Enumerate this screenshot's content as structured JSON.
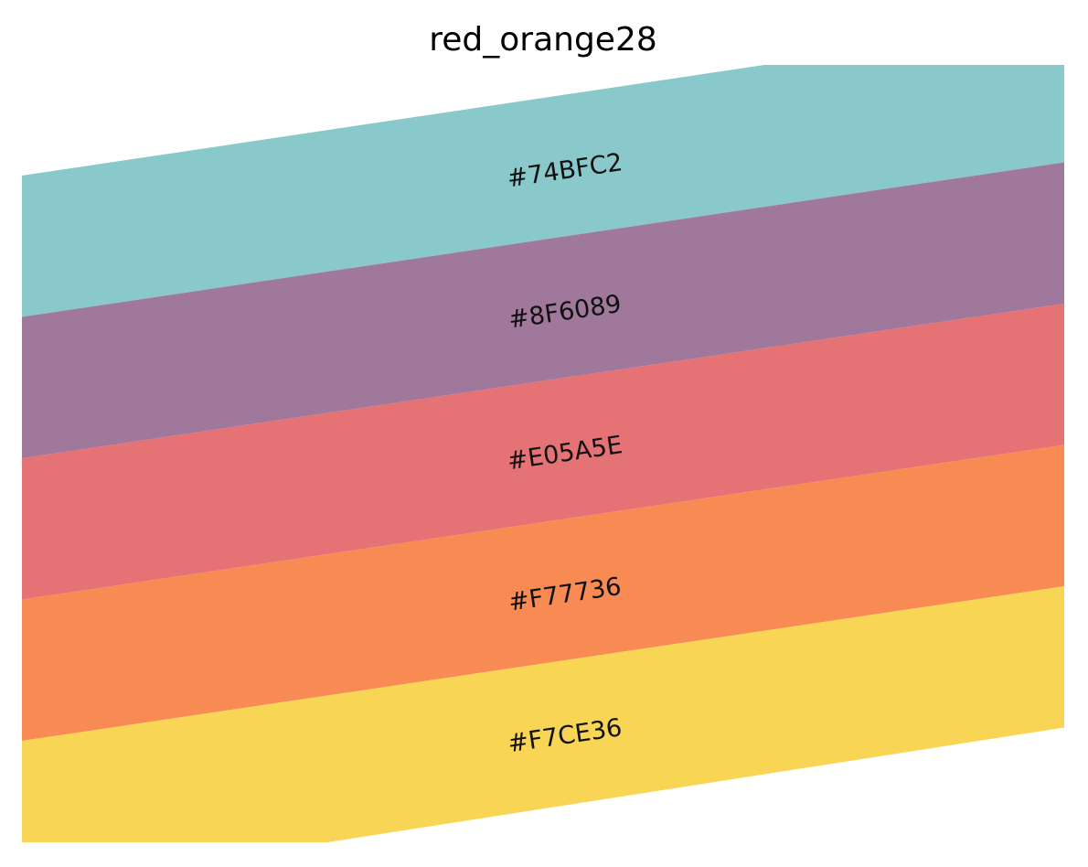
{
  "chart_data": {
    "type": "table",
    "title": "red_orange28",
    "grid": false,
    "legend": "none",
    "swatches": [
      {
        "label": "#74BFC2",
        "color": "#74BFC2"
      },
      {
        "label": "#8F6089",
        "color": "#8F6089"
      },
      {
        "label": "#E05A5E",
        "color": "#E05A5E"
      },
      {
        "label": "#F77736",
        "color": "#F77736"
      },
      {
        "label": "#F7CE36",
        "color": "#F7CE36"
      }
    ]
  }
}
